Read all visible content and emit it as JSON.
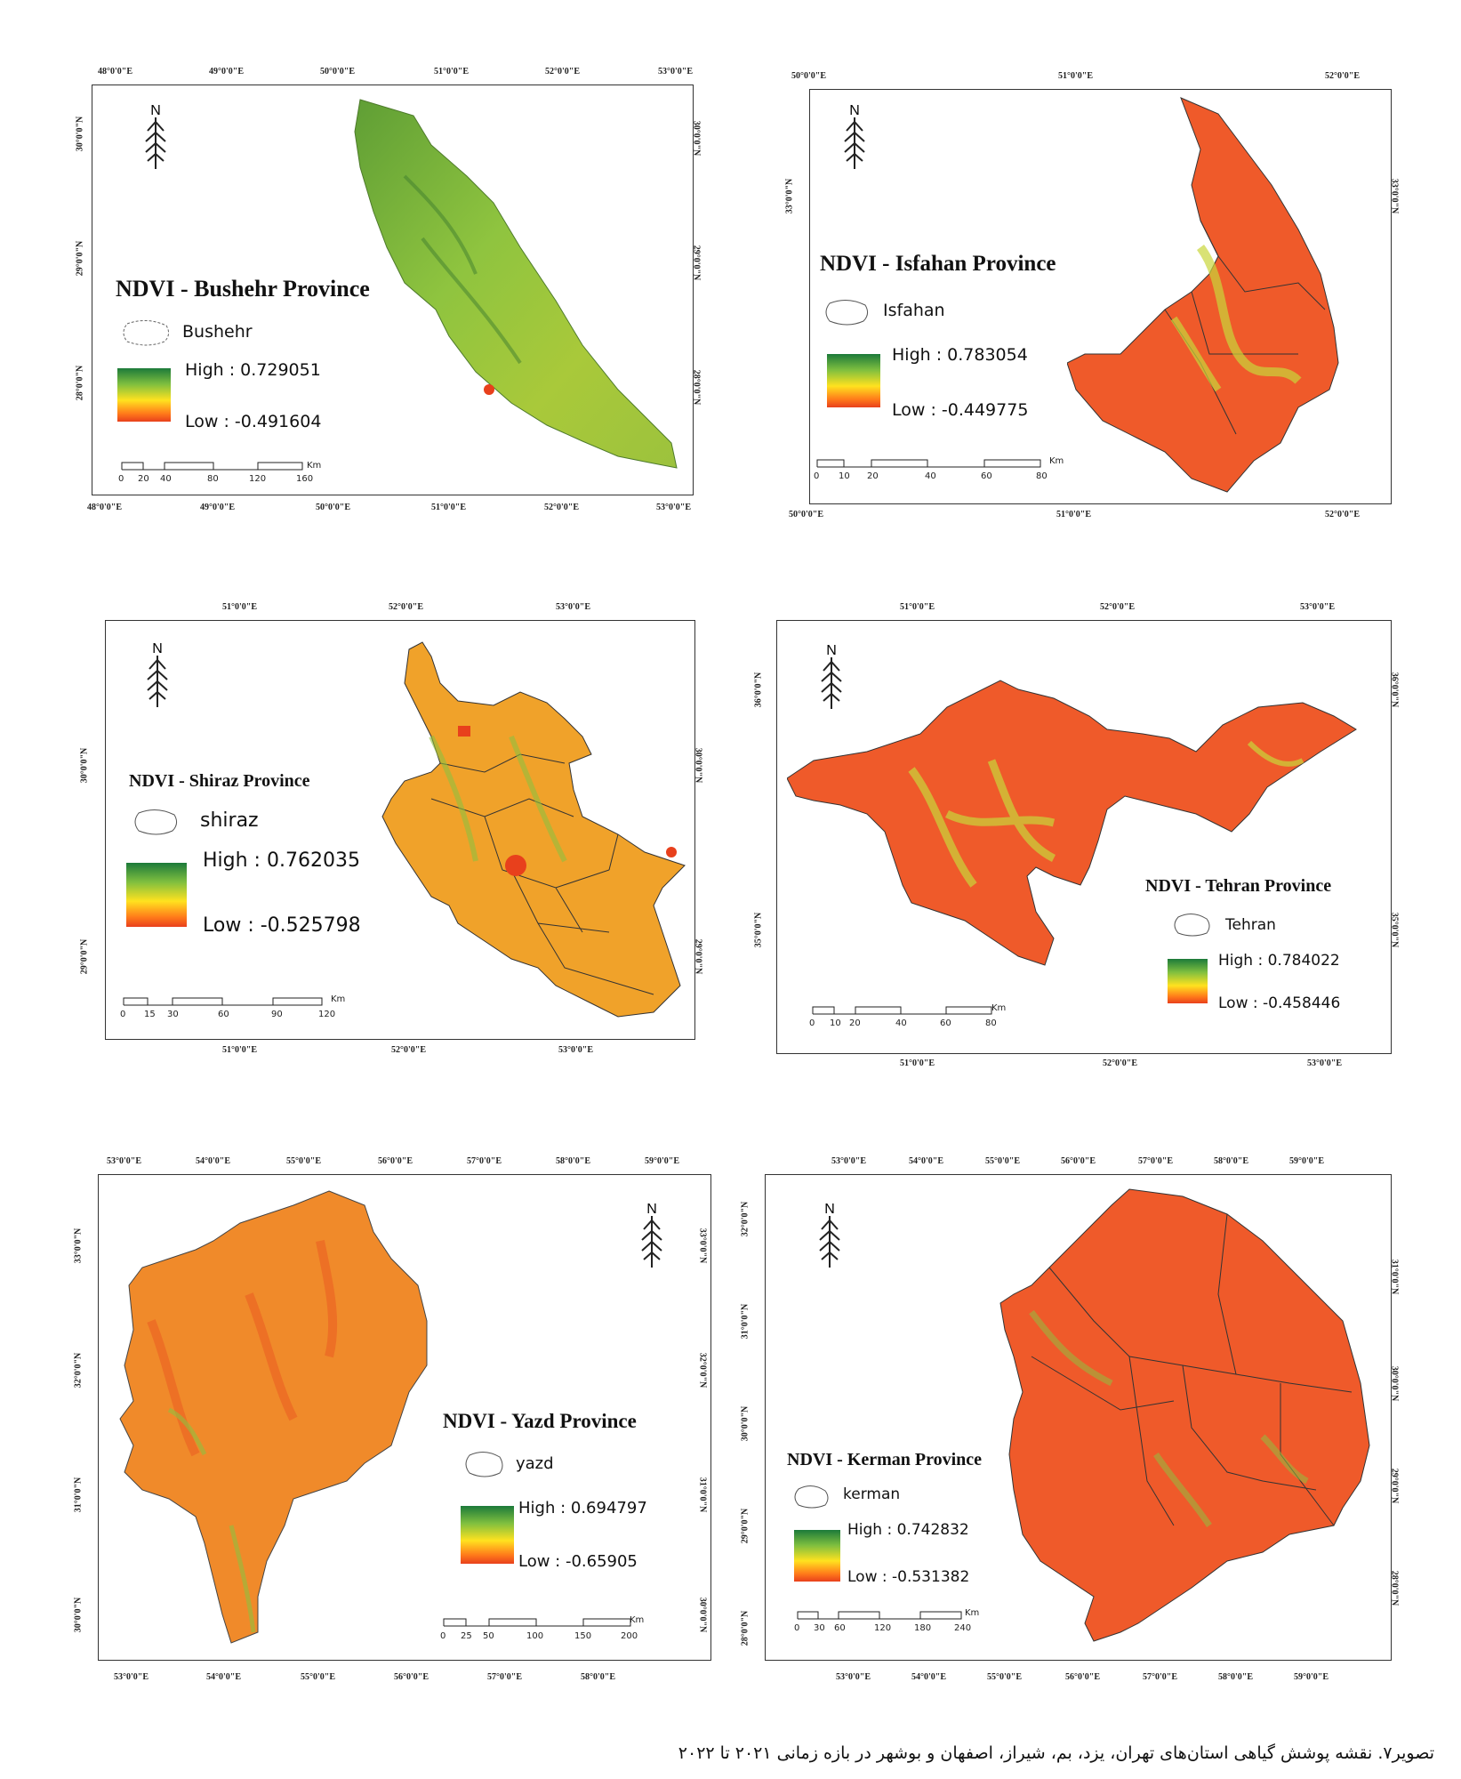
{
  "maps": [
    {
      "title": "NDVI - Bushehr Province",
      "boundary_label": "Bushehr",
      "high": "High : 0.729051",
      "low": "Low : -0.491604",
      "top_ticks": [
        "48°0'0\"E",
        "49°0'0\"E",
        "50°0'0\"E",
        "51°0'0\"E",
        "52°0'0\"E",
        "53°0'0\"E"
      ],
      "bottom_ticks": [
        "48°0'0\"E",
        "49°0'0\"E",
        "50°0'0\"E",
        "51°0'0\"E",
        "52°0'0\"E",
        "53°0'0\"E"
      ],
      "left_ticks": [
        "30°0'0\"N",
        "29°0'0\"N",
        "28°0'0\"N"
      ],
      "right_ticks": [
        "30°0'0\"N",
        "29°0'0\"N",
        "28°0'0\"N"
      ],
      "scale": [
        "0",
        "20",
        "40",
        "80",
        "120",
        "160"
      ],
      "scale_unit": "Km",
      "color_theme": "green"
    },
    {
      "title": "NDVI - Isfahan Province",
      "boundary_label": "Isfahan",
      "high": "High : 0.783054",
      "low": "Low : -0.449775",
      "top_ticks": [
        "50°0'0\"E",
        "51°0'0\"E",
        "52°0'0\"E"
      ],
      "bottom_ticks": [
        "50°0'0\"E",
        "51°0'0\"E",
        "52°0'0\"E"
      ],
      "left_ticks": [
        "33°0'0\"N"
      ],
      "right_ticks": [
        "33°0'0\"N"
      ],
      "scale": [
        "0",
        "10",
        "20",
        "40",
        "60",
        "80"
      ],
      "scale_unit": "Km",
      "color_theme": "red"
    },
    {
      "title": "NDVI - Shiraz Province",
      "boundary_label": "shiraz",
      "high": "High : 0.762035",
      "low": "Low : -0.525798",
      "top_ticks": [
        "51°0'0\"E",
        "52°0'0\"E",
        "53°0'0\"E"
      ],
      "bottom_ticks": [
        "51°0'0\"E",
        "52°0'0\"E",
        "53°0'0\"E"
      ],
      "left_ticks": [
        "30°0'0\"N",
        "29°0'0\"N"
      ],
      "right_ticks": [
        "30°0'0\"N",
        "29°0'0\"N"
      ],
      "scale": [
        "0",
        "15",
        "30",
        "60",
        "90",
        "120"
      ],
      "scale_unit": "Km",
      "color_theme": "orange"
    },
    {
      "title": "NDVI - Tehran Province",
      "boundary_label": "Tehran",
      "high": "High : 0.784022",
      "low": "Low : -0.458446",
      "top_ticks": [
        "51°0'0\"E",
        "52°0'0\"E",
        "53°0'0\"E"
      ],
      "bottom_ticks": [
        "51°0'0\"E",
        "52°0'0\"E",
        "53°0'0\"E"
      ],
      "left_ticks": [
        "36°0'0\"N",
        "35°0'0\"N"
      ],
      "right_ticks": [
        "36°0'0\"N",
        "35°0'0\"N"
      ],
      "scale": [
        "0",
        "10",
        "20",
        "40",
        "60",
        "80"
      ],
      "scale_unit": "Km",
      "color_theme": "red"
    },
    {
      "title": "NDVI - Yazd Province",
      "boundary_label": "yazd",
      "high": "High : 0.694797",
      "low": "Low : -0.65905",
      "top_ticks": [
        "53°0'0\"E",
        "54°0'0\"E",
        "55°0'0\"E",
        "56°0'0\"E",
        "57°0'0\"E",
        "58°0'0\"E",
        "59°0'0\"E"
      ],
      "bottom_ticks": [
        "53°0'0\"E",
        "54°0'0\"E",
        "55°0'0\"E",
        "56°0'0\"E",
        "57°0'0\"E",
        "58°0'0\"E"
      ],
      "left_ticks": [
        "33°0'0\"N",
        "32°0'0\"N",
        "31°0'0\"N",
        "30°0'0\"N"
      ],
      "right_ticks": [
        "33°0'0\"N",
        "32°0'0\"N",
        "31°0'0\"N",
        "30°0'0\"N"
      ],
      "scale": [
        "0",
        "25",
        "50",
        "100",
        "150",
        "200"
      ],
      "scale_unit": "Km",
      "color_theme": "orange"
    },
    {
      "title": "NDVI - Kerman Province",
      "boundary_label": "kerman",
      "high": "High : 0.742832",
      "low": "Low : -0.531382",
      "top_ticks": [
        "53°0'0\"E",
        "54°0'0\"E",
        "55°0'0\"E",
        "56°0'0\"E",
        "57°0'0\"E",
        "58°0'0\"E",
        "59°0'0\"E"
      ],
      "bottom_ticks": [
        "53°0'0\"E",
        "54°0'0\"E",
        "55°0'0\"E",
        "56°0'0\"E",
        "57°0'0\"E",
        "58°0'0\"E",
        "59°0'0\"E"
      ],
      "left_ticks": [
        "32°0'0\"N",
        "31°0'0\"N",
        "30°0'0\"N",
        "29°0'0\"N",
        "28°0'0\"N"
      ],
      "right_ticks": [
        "31°0'0\"N",
        "30°0'0\"N",
        "29°0'0\"N",
        "28°0'0\"N"
      ],
      "scale": [
        "0",
        "30",
        "60",
        "120",
        "180",
        "240"
      ],
      "scale_unit": "Km",
      "color_theme": "red"
    }
  ],
  "north_label": "N",
  "caption": "تصویر۷. نقشه پوشش گیاهی استان‌های تهران، یزد، بم، شیراز، اصفهان و بوشهر در بازه زمانی ۲۰۲۱ تا ۲۰۲۲",
  "colors": {
    "high": "#1c7a3a",
    "mid": "#ffe21f",
    "low": "#e8401c",
    "bushehr_fill": "#8fc43f",
    "red_fill": "#ef5a2a",
    "orange_fill": "#f08a2a"
  }
}
